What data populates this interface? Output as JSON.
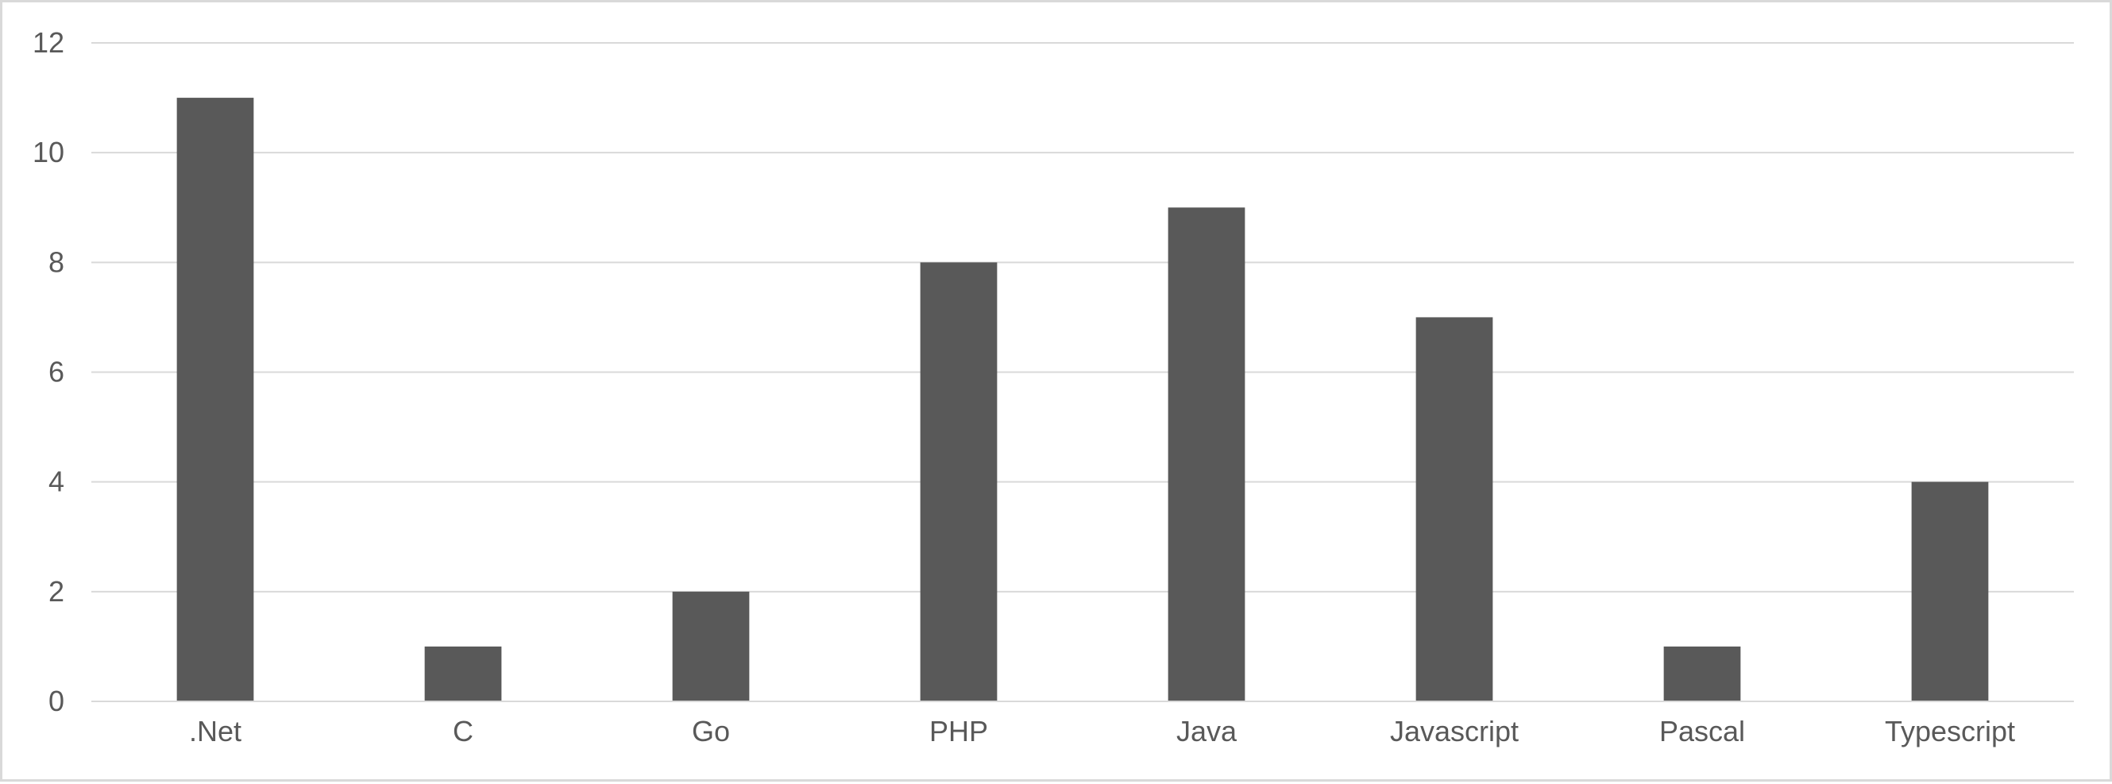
{
  "chart_data": {
    "type": "bar",
    "title": "",
    "xlabel": "",
    "ylabel": "",
    "categories": [
      ".Net",
      "C",
      "Go",
      "PHP",
      "Java",
      "Javascript",
      "Pascal",
      "Typescript"
    ],
    "values": [
      11,
      1,
      2,
      8,
      9,
      7,
      1,
      4
    ],
    "ylim": [
      0,
      12
    ],
    "yticks": [
      0,
      2,
      4,
      6,
      8,
      10,
      12
    ],
    "grid": true,
    "legend": "none",
    "colors": {
      "bar": "#595959",
      "grid": "#d9d9d9",
      "axis": "#d9d9d9",
      "text": "#595959"
    }
  }
}
